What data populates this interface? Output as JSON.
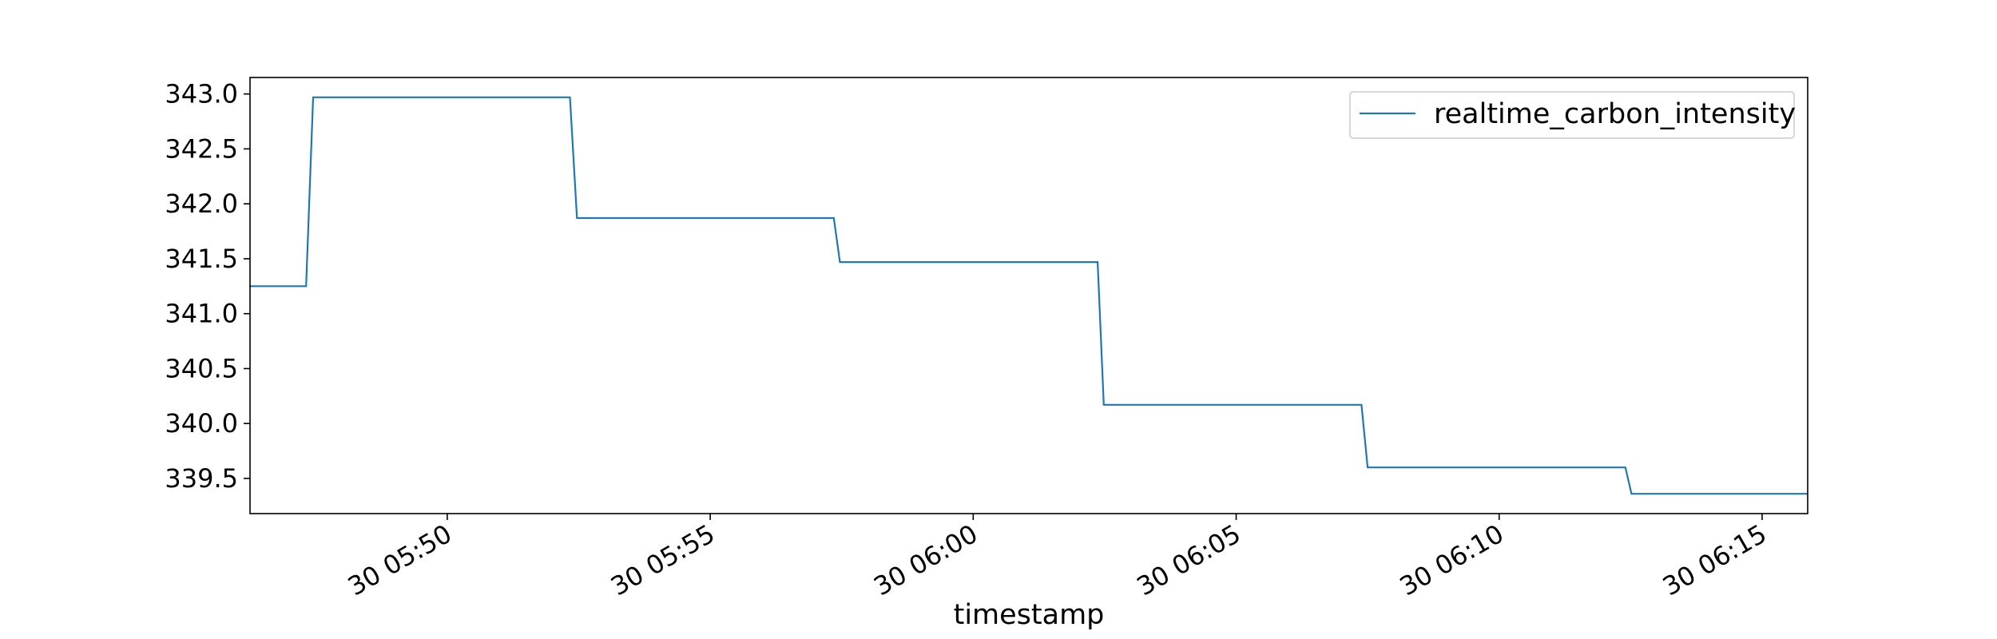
{
  "chart_data": {
    "type": "line",
    "title": "",
    "xlabel": "timestamp",
    "ylabel": "",
    "xlim": [
      "05:46:15",
      "06:15:52"
    ],
    "ylim": [
      339.18,
      343.15
    ],
    "grid": false,
    "legend_position": "top-right",
    "x_ticks": [
      "05:50",
      "05:55",
      "06:00",
      "06:05",
      "06:10",
      "06:15"
    ],
    "x_tick_labels": [
      "30 05:50",
      "30 05:55",
      "30 06:00",
      "30 06:05",
      "30 06:10",
      "30 06:15"
    ],
    "y_ticks": [
      339.5,
      340.0,
      340.5,
      341.0,
      341.5,
      342.0,
      342.5,
      343.0
    ],
    "y_tick_labels": [
      "339.5",
      "340.0",
      "340.5",
      "341.0",
      "341.5",
      "342.0",
      "342.5",
      "343.0"
    ],
    "series": [
      {
        "name": "realtime_carbon_intensity",
        "color": "#1f77b4",
        "x": [
          "05:46:15",
          "05:47:19",
          "05:47:27",
          "05:52:20",
          "05:52:28",
          "05:57:21",
          "05:57:28",
          "06:02:22",
          "06:02:29",
          "06:07:23",
          "06:07:30",
          "06:12:24",
          "06:12:31",
          "06:15:52"
        ],
        "y": [
          341.25,
          341.25,
          342.97,
          342.97,
          341.87,
          341.87,
          341.47,
          341.47,
          340.17,
          340.17,
          339.6,
          339.6,
          339.36,
          339.36
        ]
      }
    ]
  }
}
